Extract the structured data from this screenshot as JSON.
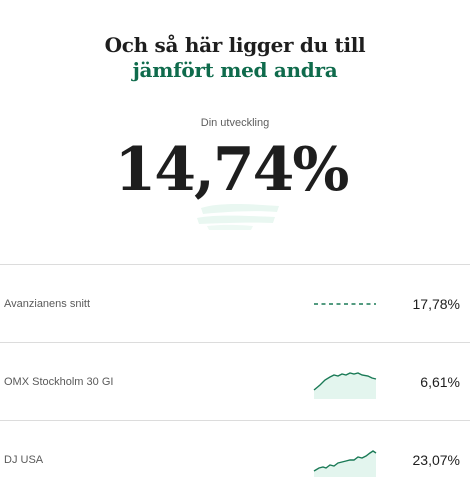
{
  "header": {
    "title_line1": "Och så här ligger du till",
    "title_line2": "jämfört med andra"
  },
  "summary": {
    "label": "Din utveckling",
    "value": "14,74%"
  },
  "comparisons": [
    {
      "name": "Avanzianens snitt",
      "value": "17,78%",
      "sparkline": "dashed-flat"
    },
    {
      "name": "OMX Stockholm 30 GI",
      "value": "6,61%",
      "sparkline": "area-line"
    },
    {
      "name": "DJ USA",
      "value": "23,07%",
      "sparkline": "area-line"
    }
  ],
  "colors": {
    "accent": "#0f6b4c",
    "spark_line": "#1a7a56",
    "spark_fill": "#e3f5ee",
    "divider": "#dcdcdc"
  }
}
